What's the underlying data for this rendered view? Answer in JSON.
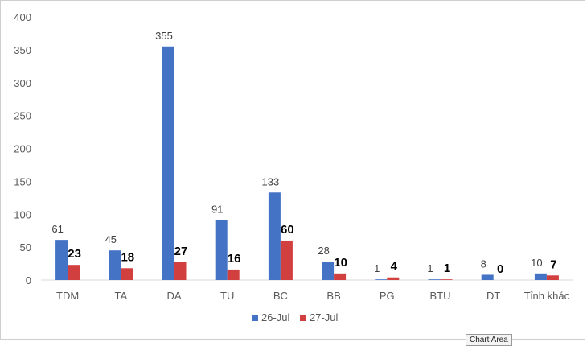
{
  "chart_data": {
    "type": "bar",
    "categories": [
      "TDM",
      "TA",
      "DA",
      "TU",
      "BC",
      "BB",
      "PG",
      "BTU",
      "DT",
      "Tỉnh khác"
    ],
    "series": [
      {
        "name": "26-Jul",
        "color": "#4472C4",
        "values": [
          61,
          45,
          355,
          91,
          133,
          28,
          1,
          1,
          8,
          10
        ]
      },
      {
        "name": "27-Jul",
        "color": "#D13F3F",
        "values": [
          23,
          18,
          27,
          16,
          60,
          10,
          4,
          1,
          0,
          7
        ]
      }
    ],
    "title": "",
    "xlabel": "",
    "ylabel": "",
    "ylim": [
      0,
      400
    ],
    "yticks": [
      0,
      50,
      100,
      150,
      200,
      250,
      300,
      350,
      400
    ],
    "grid": false,
    "legend_position": "bottom"
  },
  "tooltip": {
    "text": "Chart Area"
  }
}
